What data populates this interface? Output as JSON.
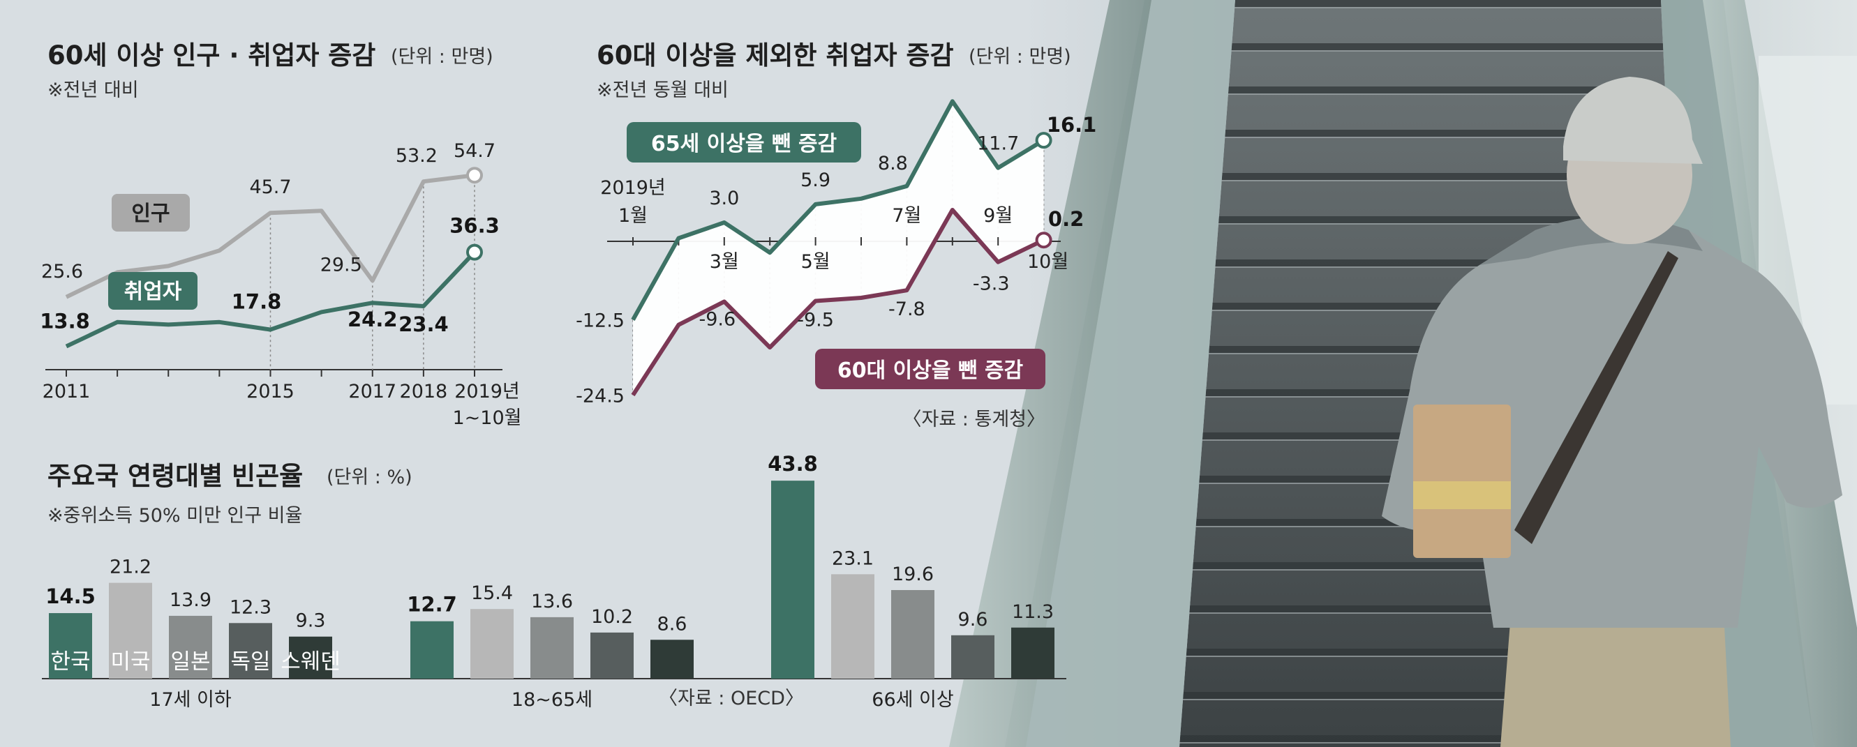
{
  "chart_data": [
    {
      "type": "line",
      "title": "60세 이상 인구 · 취업자 증감",
      "unit": "(단위 : 만명)",
      "note": "※전년 대비",
      "x_ticks": [
        "2011",
        "2015",
        "2017",
        "2018",
        "2019년",
        "1~10월"
      ],
      "ylim": [
        0,
        60
      ],
      "series": [
        {
          "name": "인구",
          "color": "#a9a9a9",
          "x": [
            2011,
            2012,
            2013,
            2014,
            2015,
            2016,
            2017,
            2018,
            2019
          ],
          "values": [
            25.6,
            31.5,
            33.0,
            36.7,
            45.7,
            46.2,
            29.5,
            53.2,
            54.7
          ],
          "labels": {
            "0": "25.6",
            "4": "45.7",
            "6": "29.5",
            "7": "53.2",
            "8": "54.7"
          }
        },
        {
          "name": "취업자",
          "color": "#3d7265",
          "x": [
            2011,
            2012,
            2013,
            2014,
            2015,
            2016,
            2017,
            2018,
            2019
          ],
          "values": [
            13.8,
            19.6,
            19.0,
            19.6,
            17.8,
            22.0,
            24.2,
            23.4,
            36.3
          ],
          "labels": {
            "0": "13.8",
            "4": "17.8",
            "6": "24.2",
            "7": "23.4",
            "8": "36.3"
          }
        }
      ]
    },
    {
      "type": "line",
      "title": "60대 이상을 제외한 취업자 증감",
      "unit": "(단위 : 만명)",
      "note": "※전년 동월 대비",
      "source": "〈자료 : 통계청〉",
      "x_ticks": [
        "2019년",
        "1월",
        "3월",
        "5월",
        "7월",
        "9월",
        "10월"
      ],
      "series": [
        {
          "name": "65세 이상을 뺀 증감",
          "color": "#3d7265",
          "x": [
            1,
            2,
            3,
            4,
            5,
            6,
            7,
            8,
            9,
            10
          ],
          "values": [
            -12.5,
            0.5,
            3.0,
            -1.8,
            5.9,
            6.8,
            8.8,
            22.3,
            11.7,
            16.1
          ],
          "labels": {
            "0": "-12.5",
            "2": "3.0",
            "4": "5.9",
            "6": "8.8",
            "8": "11.7",
            "9": "16.1"
          }
        },
        {
          "name": "60대 이상을 뺀 증감",
          "color": "#7b3855",
          "x": [
            1,
            2,
            3,
            4,
            5,
            6,
            7,
            8,
            9,
            10
          ],
          "values": [
            -24.5,
            -13.3,
            -9.6,
            -16.9,
            -9.5,
            -9.0,
            -7.8,
            5.0,
            -3.3,
            0.2
          ],
          "labels": {
            "0": "-24.5",
            "2": "-9.6",
            "4": "-9.5",
            "6": "-7.8",
            "8": "-3.3",
            "9": "0.2"
          }
        }
      ]
    },
    {
      "type": "bar",
      "title": "주요국 연령대별 빈곤율",
      "unit": "(단위 : %)",
      "note": "※중위소득 50% 미만 인구 비율",
      "source": "〈자료 : OECD〉",
      "categories": [
        "한국",
        "미국",
        "일본",
        "독일",
        "스웨덴"
      ],
      "colors": [
        "#3d7265",
        "#b7b7b7",
        "#888c8c",
        "#575e5e",
        "#2f3b37"
      ],
      "groups": [
        {
          "name": "17세 이하",
          "values": [
            14.5,
            21.2,
            13.9,
            12.3,
            9.3
          ]
        },
        {
          "name": "18~65세",
          "values": [
            12.7,
            15.4,
            13.6,
            10.2,
            8.6
          ]
        },
        {
          "name": "66세 이상",
          "values": [
            43.8,
            23.1,
            19.6,
            9.6,
            11.3
          ]
        }
      ]
    }
  ]
}
